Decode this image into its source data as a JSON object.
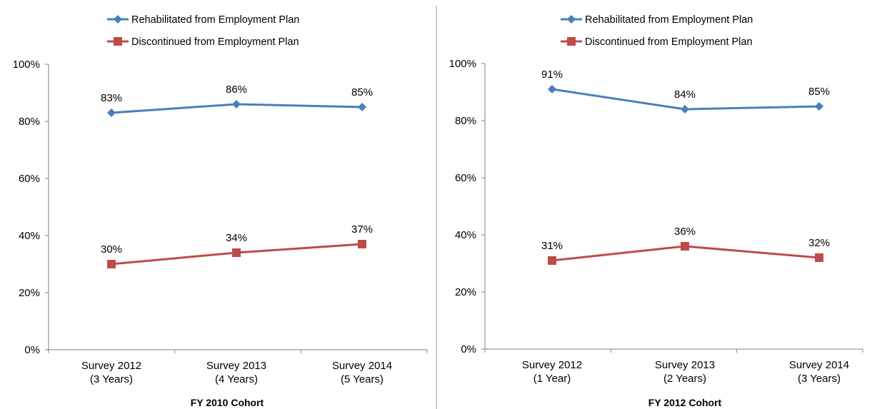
{
  "chart_data": [
    {
      "type": "line",
      "xlabel": "FY 2010 Cohort",
      "ylabel": "",
      "ylim": [
        0,
        100
      ],
      "yticks": [
        "0%",
        "20%",
        "40%",
        "60%",
        "80%",
        "100%"
      ],
      "categories": [
        [
          "Survey 2012",
          "(3 Years)"
        ],
        [
          "Survey 2013",
          "(4 Years)"
        ],
        [
          "Survey 2014",
          "(5 Years)"
        ]
      ],
      "legend_position": "top",
      "grid": false,
      "series": [
        {
          "name": "Rehabilitated from Employment Plan",
          "color": "#4a7ebb",
          "marker": "diamond",
          "values": [
            83,
            86,
            85
          ],
          "labels": [
            "83%",
            "86%",
            "85%"
          ]
        },
        {
          "name": "Discontinued from Employment Plan",
          "color": "#be4b48",
          "marker": "square",
          "values": [
            30,
            34,
            37
          ],
          "labels": [
            "30%",
            "34%",
            "37%"
          ]
        }
      ]
    },
    {
      "type": "line",
      "xlabel": "FY 2012 Cohort",
      "ylabel": "",
      "ylim": [
        0,
        100
      ],
      "yticks": [
        "0%",
        "20%",
        "40%",
        "60%",
        "80%",
        "100%"
      ],
      "categories": [
        [
          "Survey 2012",
          "(1 Year)"
        ],
        [
          "Survey 2013",
          "(2 Years)"
        ],
        [
          "Survey 2014",
          "(3 Years)"
        ]
      ],
      "legend_position": "top",
      "grid": false,
      "series": [
        {
          "name": "Rehabilitated from Employment Plan",
          "color": "#4a7ebb",
          "marker": "diamond",
          "values": [
            91,
            84,
            85
          ],
          "labels": [
            "91%",
            "84%",
            "85%"
          ]
        },
        {
          "name": "Discontinued from Employment Plan",
          "color": "#be4b48",
          "marker": "square",
          "values": [
            31,
            36,
            32
          ],
          "labels": [
            "31%",
            "36%",
            "32%"
          ]
        }
      ]
    }
  ]
}
